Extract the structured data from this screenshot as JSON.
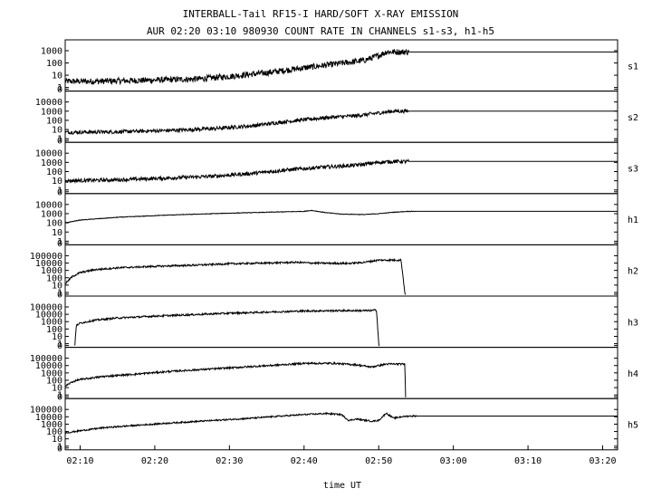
{
  "chart_data": {
    "type": "line",
    "title": "INTERBALL-Tail RF15-I HARD/SOFT X-RAY EMISSION",
    "subtitle": "AUR 02:20 03:10 980930  COUNT RATE IN CHANNELS s1-s3, h1-h5",
    "xlabel": "time UT",
    "x_range_minutes": [
      8,
      82
    ],
    "x_ticks": [
      {
        "minute": 10,
        "label": "02:10"
      },
      {
        "minute": 20,
        "label": "02:20"
      },
      {
        "minute": 30,
        "label": "02:30"
      },
      {
        "minute": 40,
        "label": "02:40"
      },
      {
        "minute": 50,
        "label": "02:50"
      },
      {
        "minute": 60,
        "label": "03:00"
      },
      {
        "minute": 70,
        "label": "03:10"
      },
      {
        "minute": 80,
        "label": "03:20"
      }
    ],
    "y_scale": "log",
    "panels": [
      {
        "name": "s1",
        "ymin_exp": 0,
        "ymax_exp": 3,
        "y_ticks": [
          "0",
          "1",
          "10",
          "100",
          "1000"
        ],
        "zero_tick": true,
        "noise": 0.25,
        "points": [
          [
            8,
            0.5
          ],
          [
            12,
            0.5
          ],
          [
            20,
            0.6
          ],
          [
            26,
            0.7
          ],
          [
            30,
            0.9
          ],
          [
            35,
            1.2
          ],
          [
            40,
            1.6
          ],
          [
            44,
            1.9
          ],
          [
            48,
            2.2
          ],
          [
            50,
            2.6
          ],
          [
            51,
            2.9
          ],
          [
            82,
            2.9
          ]
        ]
      },
      {
        "name": "s2",
        "ymin_exp": 0,
        "ymax_exp": 4,
        "y_ticks": [
          "0",
          "1",
          "10",
          "100",
          "1000",
          "10000"
        ],
        "zero_tick": true,
        "noise": 0.2,
        "points": [
          [
            8,
            0.7
          ],
          [
            15,
            0.75
          ],
          [
            22,
            0.9
          ],
          [
            28,
            1.1
          ],
          [
            33,
            1.4
          ],
          [
            38,
            1.9
          ],
          [
            43,
            2.3
          ],
          [
            47,
            2.5
          ],
          [
            50,
            2.8
          ],
          [
            52,
            3.0
          ],
          [
            82,
            3.0
          ]
        ]
      },
      {
        "name": "s3",
        "ymin_exp": 0,
        "ymax_exp": 4,
        "y_ticks": [
          "0",
          "1",
          "10",
          "100",
          "1000",
          "10000"
        ],
        "zero_tick": true,
        "noise": 0.2,
        "points": [
          [
            8,
            1.0
          ],
          [
            15,
            1.1
          ],
          [
            22,
            1.3
          ],
          [
            28,
            1.5
          ],
          [
            33,
            1.8
          ],
          [
            38,
            2.2
          ],
          [
            43,
            2.5
          ],
          [
            47,
            2.7
          ],
          [
            50,
            3.0
          ],
          [
            52,
            3.1
          ],
          [
            82,
            3.1
          ]
        ]
      },
      {
        "name": "h1",
        "ymin_exp": 0,
        "ymax_exp": 4,
        "y_ticks": [
          "0",
          "1",
          "10",
          "100",
          "1000",
          "10000"
        ],
        "zero_tick": true,
        "noise": 0.03,
        "points": [
          [
            8,
            2.0
          ],
          [
            10,
            2.3
          ],
          [
            15,
            2.6
          ],
          [
            22,
            2.85
          ],
          [
            30,
            3.05
          ],
          [
            35,
            3.15
          ],
          [
            40,
            3.25
          ],
          [
            41,
            3.35
          ],
          [
            43,
            3.1
          ],
          [
            45,
            2.95
          ],
          [
            48,
            2.9
          ],
          [
            50,
            3.0
          ],
          [
            52,
            3.15
          ],
          [
            54,
            3.25
          ],
          [
            82,
            3.25
          ]
        ]
      },
      {
        "name": "h2",
        "ymin_exp": 0,
        "ymax_exp": 5,
        "y_ticks": [
          "0",
          "1",
          "10",
          "100",
          "1000",
          "10000",
          "100000"
        ],
        "zero_tick": true,
        "noise": 0.12,
        "points": [
          [
            8,
            1.2
          ],
          [
            9,
            2.2
          ],
          [
            10,
            2.7
          ],
          [
            12,
            3.1
          ],
          [
            15,
            3.35
          ],
          [
            20,
            3.55
          ],
          [
            25,
            3.7
          ],
          [
            30,
            3.9
          ],
          [
            35,
            4.0
          ],
          [
            39,
            4.1
          ],
          [
            41,
            4.0
          ],
          [
            46,
            3.95
          ],
          [
            48,
            4.1
          ],
          [
            50,
            4.4
          ],
          [
            53,
            4.4
          ],
          [
            53.5,
            0
          ],
          [
            53.6,
            0
          ]
        ]
      },
      {
        "name": "h3",
        "ymin_exp": 0,
        "ymax_exp": 5,
        "y_ticks": [
          "0",
          "1",
          "10",
          "100",
          "1000",
          "10000",
          "100000"
        ],
        "zero_tick": true,
        "noise": 0.12,
        "points": [
          [
            9.3,
            0
          ],
          [
            9.5,
            2.5
          ],
          [
            10,
            2.8
          ],
          [
            12,
            3.2
          ],
          [
            15,
            3.5
          ],
          [
            20,
            3.75
          ],
          [
            25,
            3.95
          ],
          [
            30,
            4.15
          ],
          [
            35,
            4.3
          ],
          [
            40,
            4.45
          ],
          [
            45,
            4.5
          ],
          [
            49,
            4.5
          ],
          [
            49.7,
            4.6
          ],
          [
            50,
            0
          ],
          [
            50.1,
            0
          ]
        ]
      },
      {
        "name": "h4",
        "ymin_exp": 0,
        "ymax_exp": 5,
        "y_ticks": [
          "0",
          "1",
          "10",
          "100",
          "1000",
          "10000",
          "100000"
        ],
        "zero_tick": true,
        "noise": 0.12,
        "points": [
          [
            8,
            1.2
          ],
          [
            9,
            1.8
          ],
          [
            10,
            2.1
          ],
          [
            13,
            2.5
          ],
          [
            17,
            2.8
          ],
          [
            22,
            3.2
          ],
          [
            27,
            3.5
          ],
          [
            32,
            3.8
          ],
          [
            37,
            4.1
          ],
          [
            40,
            4.3
          ],
          [
            44,
            4.3
          ],
          [
            47,
            4.1
          ],
          [
            49,
            3.8
          ],
          [
            51,
            4.2
          ],
          [
            53.5,
            4.2
          ],
          [
            53.6,
            0
          ],
          [
            53.7,
            0
          ]
        ]
      },
      {
        "name": "h5",
        "ymin_exp": 0,
        "ymax_exp": 5,
        "y_ticks": [
          "0",
          "1",
          "10",
          "100",
          "1000",
          "10000",
          "100000"
        ],
        "zero_tick": true,
        "noise": 0.1,
        "points": [
          [
            8,
            1.8
          ],
          [
            10,
            2.1
          ],
          [
            13,
            2.5
          ],
          [
            17,
            2.8
          ],
          [
            22,
            3.15
          ],
          [
            27,
            3.45
          ],
          [
            32,
            3.75
          ],
          [
            37,
            4.1
          ],
          [
            40,
            4.3
          ],
          [
            43,
            4.45
          ],
          [
            45,
            4.3
          ],
          [
            46,
            3.5
          ],
          [
            47,
            3.7
          ],
          [
            49,
            3.4
          ],
          [
            50,
            3.5
          ],
          [
            51,
            4.5
          ],
          [
            52,
            3.8
          ],
          [
            53,
            4.0
          ],
          [
            54,
            4.1
          ],
          [
            82,
            4.1
          ]
        ]
      }
    ]
  }
}
